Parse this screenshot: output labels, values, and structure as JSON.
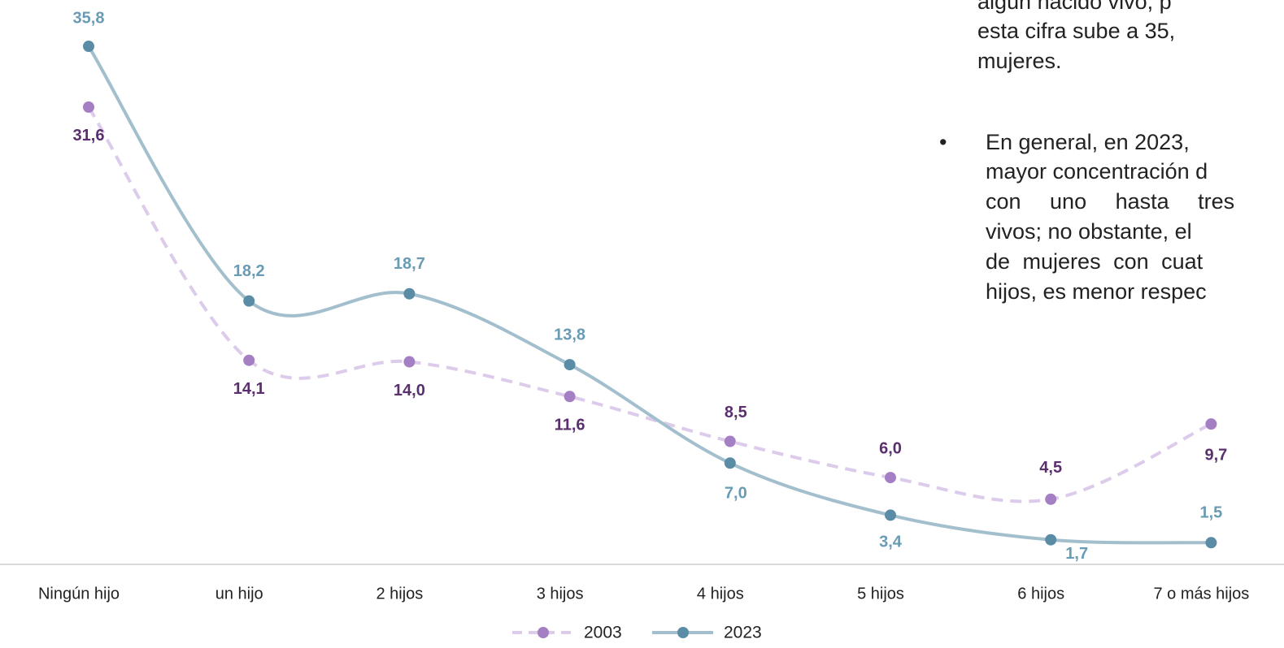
{
  "chart_data": {
    "type": "line",
    "categories": [
      "Ningún hijo",
      "un hijo",
      "2 hijos",
      "3 hijos",
      "4 hijos",
      "5 hijos",
      "6 hijos",
      "7 o más hijos"
    ],
    "ylim": [
      0,
      39
    ],
    "series": [
      {
        "name": "2003",
        "color": "#a57fc4",
        "line_color": "#dccbea",
        "label_color": "#5b2f6e",
        "dashed": true,
        "values": [
          31.6,
          14.1,
          14.0,
          11.6,
          8.5,
          6.0,
          4.5,
          9.7
        ],
        "value_labels": [
          "31,6",
          "14,1",
          "14,0",
          "11,6",
          "8,5",
          "6,0",
          "4,5",
          "9,7"
        ]
      },
      {
        "name": "2023",
        "color": "#5a8ca5",
        "line_color": "#a3bfcd",
        "label_color": "#6a9bb4",
        "dashed": false,
        "values": [
          35.8,
          18.2,
          18.7,
          13.8,
          7.0,
          3.4,
          1.7,
          1.5
        ],
        "value_labels": [
          "35,8",
          "18,2",
          "18,7",
          "13,8",
          "7,0",
          "3,4",
          "1,7",
          "1,5"
        ]
      }
    ]
  },
  "side_text": {
    "para": [
      "algún nacido vivo, p",
      "esta cifra sube a 35,",
      "mujeres."
    ],
    "bullet_mark": "•",
    "bullet": [
      "En general, en 2023,",
      "mayor concentración d",
      "con uno hasta tres",
      "vivos; no obstante, el",
      "de mujeres con cuat",
      "hijos, es menor respec"
    ]
  }
}
